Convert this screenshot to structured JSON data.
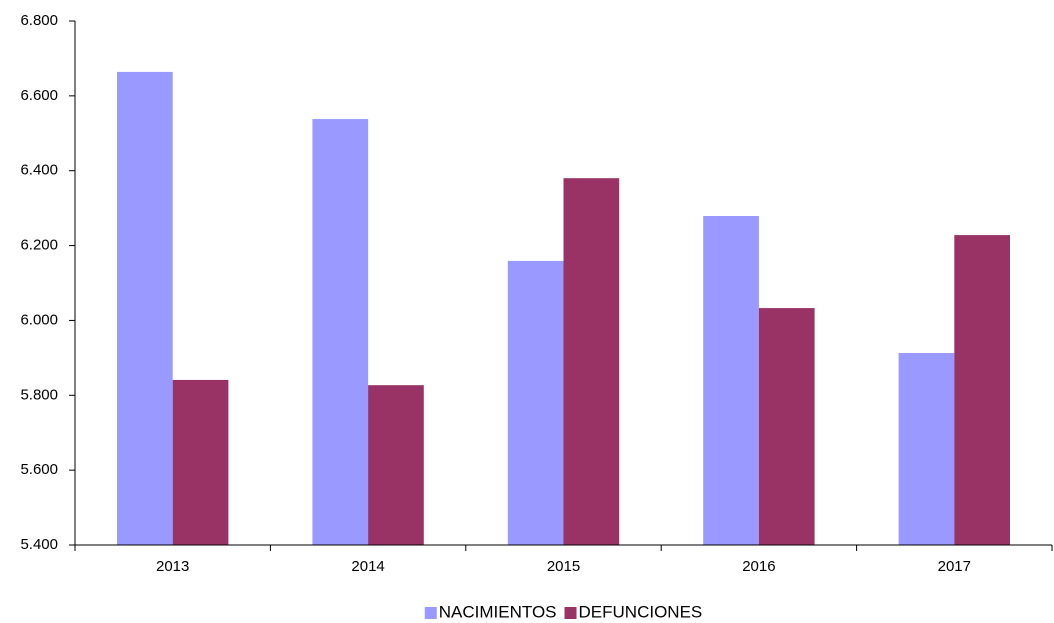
{
  "chart_data": {
    "type": "bar",
    "categories": [
      "2013",
      "2014",
      "2015",
      "2016",
      "2017"
    ],
    "series": [
      {
        "name": "NACIMIENTOS",
        "color": "#9999ff",
        "values": [
          6664,
          6538,
          6159,
          6279,
          5913
        ]
      },
      {
        "name": "DEFUNCIONES",
        "color": "#993366",
        "values": [
          5841,
          5827,
          6380,
          6033,
          6228
        ]
      }
    ],
    "ylim": [
      5400,
      6800
    ],
    "yticks": [
      {
        "value": 5400,
        "label": "5.400"
      },
      {
        "value": 5600,
        "label": "5.600"
      },
      {
        "value": 5800,
        "label": "5.800"
      },
      {
        "value": 6000,
        "label": "6.000"
      },
      {
        "value": 6200,
        "label": "6.200"
      },
      {
        "value": 6400,
        "label": "6.400"
      },
      {
        "value": 6600,
        "label": "6.600"
      },
      {
        "value": 6800,
        "label": "6.800"
      }
    ],
    "grid": false,
    "legend": "bottom"
  }
}
